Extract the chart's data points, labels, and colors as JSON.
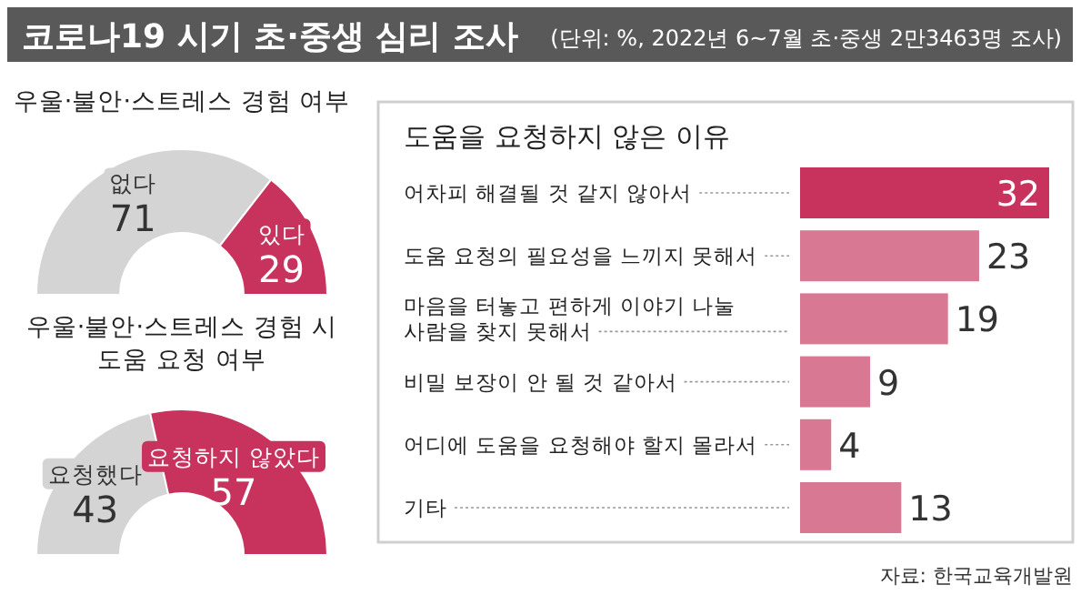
{
  "chart_data": [
    {
      "type": "other",
      "title": "코로나19 시기 초·중생 심리 조사",
      "subtitle": "(단위: %, 2022년 6~7월 초·중생 2만3463명 조사)",
      "annotations": [
        "자료: 한국교육개발원"
      ]
    },
    {
      "type": "donut",
      "title": "우울·불안·스트레스 경험 여부",
      "categories": [
        "없다",
        "있다"
      ],
      "values": [
        71,
        29
      ],
      "colors": [
        "#d4d4d4",
        "#c8335e"
      ],
      "data_labels": true
    },
    {
      "type": "donut",
      "title": "우울·불안·스트레스 경험 시 도움 요청 여부",
      "categories": [
        "요청했다",
        "요청하지 않았다"
      ],
      "values": [
        43,
        57
      ],
      "colors": [
        "#d4d4d4",
        "#c8335e"
      ],
      "data_labels": true
    },
    {
      "type": "bar",
      "orientation": "horizontal",
      "title": "도움을 요청하지 않은 이유",
      "categories": [
        "어차피 해결될 것 같지 않아서",
        "도움 요청의 필요성을 느끼지 못해서",
        "마음을 터놓고 편하게 이야기 나눌 사람을 찾지 못해서",
        "비밀 보장이 안 될 것 같아서",
        "어디에 도움을 요청해야 할지 몰라서",
        "기타"
      ],
      "values": [
        32,
        23,
        19,
        9,
        4,
        13
      ],
      "colors": [
        "#c8335e",
        "#d87893",
        "#d87893",
        "#d87893",
        "#d87893",
        "#d87893"
      ],
      "data_labels": true
    }
  ]
}
